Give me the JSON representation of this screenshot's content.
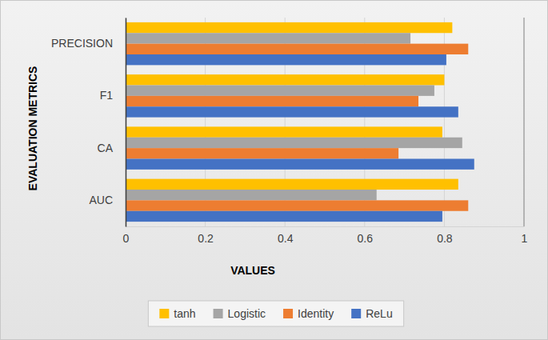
{
  "chart_data": {
    "type": "bar",
    "orientation": "horizontal",
    "x_label": "VALUES",
    "y_label": "EVALUATION METRICS",
    "categories": [
      "AUC",
      "CA",
      "F1",
      "PRECISION"
    ],
    "series": [
      {
        "name": "tanh",
        "color": "#ffc000",
        "values": [
          0.835,
          0.795,
          0.8,
          0.82
        ]
      },
      {
        "name": "Logistic",
        "color": "#a5a5a5",
        "values": [
          0.63,
          0.845,
          0.775,
          0.715
        ]
      },
      {
        "name": "Identity",
        "color": "#ed7d31",
        "values": [
          0.86,
          0.685,
          0.735,
          0.86
        ]
      },
      {
        "name": "ReLu",
        "color": "#4472c4",
        "values": [
          0.795,
          0.875,
          0.835,
          0.805
        ]
      }
    ],
    "xlim": [
      0,
      1
    ],
    "xticks": [
      0,
      0.2,
      0.4,
      0.6,
      0.8,
      1
    ],
    "grid": true,
    "legend": "bottom"
  }
}
